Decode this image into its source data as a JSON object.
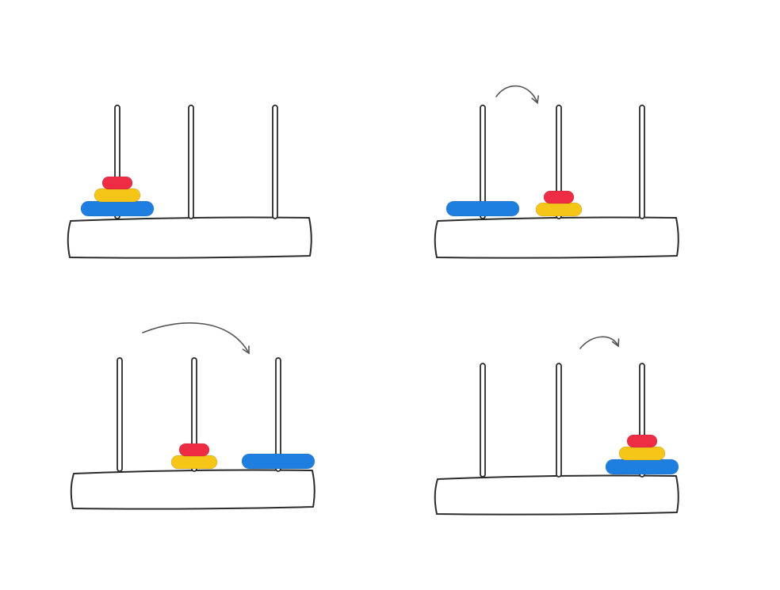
{
  "colors": {
    "outline": "#2b2b2b",
    "arrow": "#555555",
    "disc_large": "#1f7fe0",
    "disc_medium": "#f5c518",
    "disc_small": "#ee2c44"
  },
  "panels": [
    {
      "step": 1,
      "pegs": [
        [
          "large",
          "medium",
          "small"
        ],
        [],
        []
      ],
      "arrow": null
    },
    {
      "step": 2,
      "pegs": [
        [
          "large"
        ],
        [
          "medium",
          "small"
        ],
        []
      ],
      "arrow": "from-peg-1-to-peg-2"
    },
    {
      "step": 3,
      "pegs": [
        [],
        [
          "medium",
          "small"
        ],
        [
          "large"
        ]
      ],
      "arrow": "from-peg-1-to-peg-3"
    },
    {
      "step": 4,
      "pegs": [
        [],
        [],
        [
          "large",
          "medium",
          "small"
        ]
      ],
      "arrow": "from-peg-2-to-peg-3"
    }
  ]
}
